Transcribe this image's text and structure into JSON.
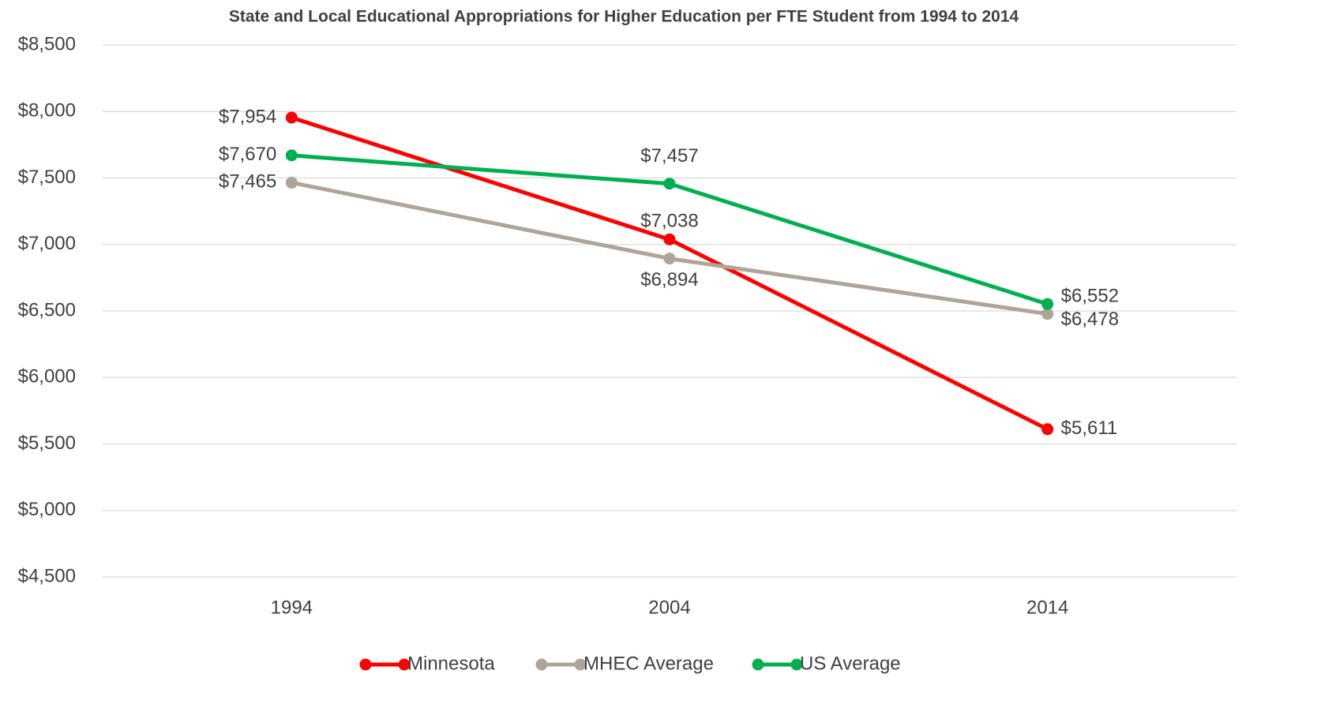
{
  "chart_data": {
    "type": "line",
    "title": "State and Local Educational Appropriations for Higher Education per FTE Student from 1994 to 2014",
    "categories": [
      "1994",
      "2004",
      "2014"
    ],
    "series": [
      {
        "name": "Minnesota",
        "color": "#ff0000",
        "values": [
          7954,
          7038,
          5611
        ],
        "value_labels": [
          "$7,954",
          "$7,038",
          "$5,611"
        ]
      },
      {
        "name": "MHEC Average",
        "color": "#aea49a",
        "values": [
          7465,
          6894,
          6478
        ],
        "value_labels": [
          "$7,465",
          "$6,894",
          "$6,478"
        ]
      },
      {
        "name": "US Average",
        "color": "#00b050",
        "values": [
          7670,
          7457,
          6552
        ],
        "value_labels": [
          "$7,670",
          "$7,457",
          "$6,552"
        ]
      }
    ],
    "ylim": [
      4500,
      8500
    ],
    "yticks": [
      {
        "value": 4500,
        "label": "$4,500"
      },
      {
        "value": 5000,
        "label": "$5,000"
      },
      {
        "value": 5500,
        "label": "$5,500"
      },
      {
        "value": 6000,
        "label": "$6,000"
      },
      {
        "value": 6500,
        "label": "$6,500"
      },
      {
        "value": 7000,
        "label": "$7,000"
      },
      {
        "value": 7500,
        "label": "$7,500"
      },
      {
        "value": 8000,
        "label": "$8,000"
      },
      {
        "value": 8500,
        "label": "$8,500"
      }
    ],
    "grid": true,
    "legend": "bottom"
  }
}
